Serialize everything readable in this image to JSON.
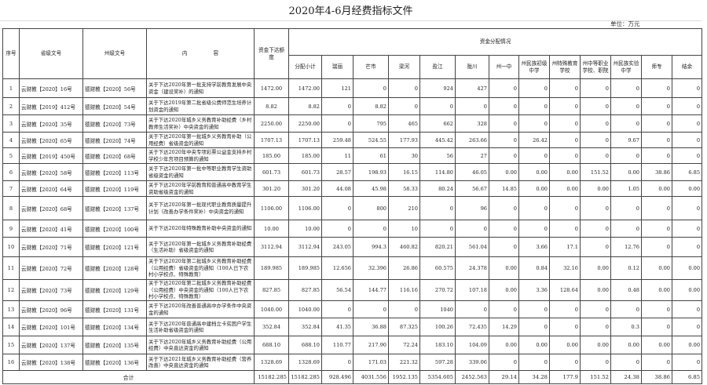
{
  "title": "2020年4-6月经费指标文件",
  "unit": "单位：万元",
  "headers": {
    "seq": "序号",
    "province_doc": "省级文号",
    "prefecture_doc": "州级文号",
    "content": "内　　　　　容",
    "amount": "资金下达额度",
    "allocation_group": "资金分配情况",
    "allocation_cols": [
      "分配小计",
      "瑞丽",
      "芒市",
      "梁河",
      "盈江",
      "陇川",
      "州一中",
      "州民族初级中学",
      "州特殊教育学校",
      "州中等职业学校、职院",
      "州民族实验中学",
      "师专",
      "结余"
    ]
  },
  "rows": [
    {
      "seq": "1",
      "province_doc": "云财教【2020】16号",
      "prefecture_doc": "德财教【2020】56号",
      "content": "关于下达2020年第一批支持学前教育发展中央资金（建设奖补）的通知",
      "amount": "1472.00",
      "alloc": [
        "1472.00",
        "121",
        "0",
        "0",
        "924",
        "427",
        "0",
        "0",
        "0",
        "0",
        "0",
        "0",
        "0"
      ]
    },
    {
      "seq": "2",
      "province_doc": "云财教【2019】412号",
      "prefecture_doc": "德财教【2020】54号",
      "content": "关于下达2019年第二批省级公费师范生培养计划资金的通知",
      "amount": "8.82",
      "alloc": [
        "8.82",
        "0",
        "8.82",
        "0",
        "0",
        "0",
        "0",
        "0",
        "0",
        "0",
        "0",
        "0",
        "0"
      ]
    },
    {
      "seq": "3",
      "province_doc": "云财教【2020】35号",
      "prefecture_doc": "德财教【2020】73号",
      "content": "关于下达2020年城乡义务教育补助经费（乡村教师生活奖补）中央资金的通知",
      "amount": "2250.00",
      "alloc": [
        "2250.00",
        "0",
        "795",
        "465",
        "662",
        "328",
        "0",
        "0",
        "0",
        "0",
        "0",
        "0",
        "0"
      ]
    },
    {
      "seq": "4",
      "province_doc": "云财教【2020】65号",
      "prefecture_doc": "德财教【2020】74号",
      "content": "关于下达2020年第一批城乡义务教育补助（公用经费）省级资金的通知",
      "amount": "1707.13",
      "alloc": [
        "1707.13",
        "259.48",
        "524.55",
        "177.93",
        "445.42",
        "263.66",
        "0",
        "26.42",
        "0",
        "0",
        "9.67",
        "0",
        "0"
      ]
    },
    {
      "seq": "5",
      "province_doc": "云财教【2019】450号",
      "prefecture_doc": "德财教【2020】68号",
      "content": "关于下达2020年中央专项彩票公益金支持乡村学校少年宫项目预算的通知",
      "amount": "185.00",
      "alloc": [
        "185.00",
        "11",
        "61",
        "30",
        "56",
        "27",
        "0",
        "0",
        "0",
        "0",
        "0",
        "0",
        "0"
      ]
    },
    {
      "seq": "6",
      "province_doc": "云财教【2020】58号",
      "prefecture_doc": "德财教【2020】113号",
      "content": "关于下达2020年第一批中等职业教育学生资助省级资金的通知",
      "amount": "601.73",
      "alloc": [
        "601.73",
        "28.57",
        "198.93",
        "16.15",
        "114.80",
        "46.05",
        "0.00",
        "0.00",
        "0.00",
        "151.52",
        "0.00",
        "38.86",
        "6.85"
      ]
    },
    {
      "seq": "7",
      "province_doc": "云财教【2020】64号",
      "prefecture_doc": "德财教【2020】119号",
      "content": "关于下达2020年学前教育和普通高中教育学生资助省级资金的通知",
      "amount": "301.20",
      "alloc": [
        "301.20",
        "44.08",
        "45.98",
        "58.33",
        "80.24",
        "56.67",
        "14.85",
        "0.00",
        "0.00",
        "0.00",
        "1.05",
        "0.00",
        "0.00"
      ]
    },
    {
      "seq": "8",
      "province_doc": "云财教【2020】68号",
      "prefecture_doc": "德财教【2020】137号",
      "content": "关于下达2020年第一批现代职业教育质量提升计划（改善办学条件奖补）中央资金的通知",
      "amount": "1106.00",
      "alloc": [
        "1106.00",
        "0",
        "800",
        "210",
        "0",
        "96",
        "0",
        "0",
        "0",
        "0",
        "0",
        "0",
        "0"
      ]
    },
    {
      "seq": "9",
      "province_doc": "云财教【2020】41号",
      "prefecture_doc": "德财教【2020】100号",
      "content": "关于下达2020年特殊教育补助中央资金的通知",
      "amount": "10.00",
      "alloc": [
        "10.00",
        "0",
        "0",
        "10",
        "0",
        "0",
        "0",
        "0",
        "0",
        "0",
        "0",
        "0",
        "0"
      ]
    },
    {
      "seq": "10",
      "province_doc": "云财教【2020】71号",
      "prefecture_doc": "德财教【2020】121号",
      "content": "关于下达2020年第一批城乡义务教育补助经费（生活补助）省级资金的通知",
      "amount": "3112.94",
      "alloc": [
        "3112.94",
        "243.05",
        "994.3",
        "460.82",
        "820.21",
        "561.04",
        "0",
        "3.66",
        "17.1",
        "0",
        "12.76",
        "0",
        "0"
      ]
    },
    {
      "seq": "11",
      "province_doc": "云财教【2020】72号",
      "prefecture_doc": "德财教【2020】128号",
      "content": "关于下达2020年第二批城乡义务教育补助经费（公用经费）省级资金的通知（100人已下农村小学校点、特殊教育）",
      "amount": "189.985",
      "alloc": [
        "189.985",
        "12.656",
        "32.396",
        "26.86",
        "60.575",
        "24.378",
        "0.00",
        "0.84",
        "32.16",
        "0.00",
        "0.12",
        "0.00",
        "0.00"
      ]
    },
    {
      "seq": "12",
      "province_doc": "云财教【2020】73号",
      "prefecture_doc": "德财教【2020】129号",
      "content": "关于下达2020年第二批城乡义务教育补助经费（公用经费）中央资金的通知（100人已下农村小学校点、特殊教育）",
      "amount": "827.85",
      "alloc": [
        "827.85",
        "56.54",
        "144.77",
        "116.16",
        "270.72",
        "107.18",
        "0.00",
        "3.36",
        "128.64",
        "0.00",
        "0.48",
        "0.00",
        "0.00"
      ]
    },
    {
      "seq": "13",
      "province_doc": "云财教【2020】96号",
      "prefecture_doc": "德财教【2020】131号",
      "content": "关于下达2020年改善普通高中办学条件中央资金的通知",
      "amount": "1040.00",
      "alloc": [
        "1040.00",
        "0",
        "0",
        "0",
        "1040",
        "0",
        "0",
        "0",
        "0",
        "0",
        "0",
        "0",
        "0"
      ]
    },
    {
      "seq": "14",
      "province_doc": "云财教【2020】101号",
      "prefecture_doc": "德财教【2020】134号",
      "content": "关于下达2020年普通高中建档立卡贫困户学生生活补助省级资金的通知",
      "amount": "352.84",
      "alloc": [
        "352.84",
        "41.35",
        "36.88",
        "87.325",
        "100.26",
        "72.435",
        "14.29",
        "0",
        "0",
        "0",
        "0.3",
        "0",
        "0"
      ]
    },
    {
      "seq": "15",
      "province_doc": "云财教【2020】137号",
      "prefecture_doc": "德财教【2020】135号",
      "content": "关于下达2020年城乡义务教育补助经费（公用经费）中央直达资金的通知",
      "amount": "688.10",
      "alloc": [
        "688.10",
        "110.77",
        "217.90",
        "72.24",
        "183.10",
        "104.09",
        "0.00",
        "0.00",
        "0.00",
        "0.00",
        "0.00",
        "0.00",
        "0.00"
      ]
    },
    {
      "seq": "16",
      "province_doc": "云财教【2020】138号",
      "prefecture_doc": "德财教【2020】136号",
      "content": "关于下达2021年城乡义务教育补助经费（营养改善）中央直达资金的通知",
      "amount": "1328.69",
      "alloc": [
        "1328.69",
        "0",
        "171.03",
        "221.32",
        "597.28",
        "339.06",
        "0",
        "0",
        "0",
        "0",
        "0",
        "0",
        "0"
      ]
    }
  ],
  "total": {
    "label": "合计",
    "amount": "15182.285",
    "alloc": [
      "15182.285",
      "928.496",
      "4031.556",
      "1952.135",
      "5354.605",
      "2452.563",
      "29.14",
      "34.28",
      "177.9",
      "151.52",
      "24.38",
      "38.86",
      "6.85"
    ]
  }
}
